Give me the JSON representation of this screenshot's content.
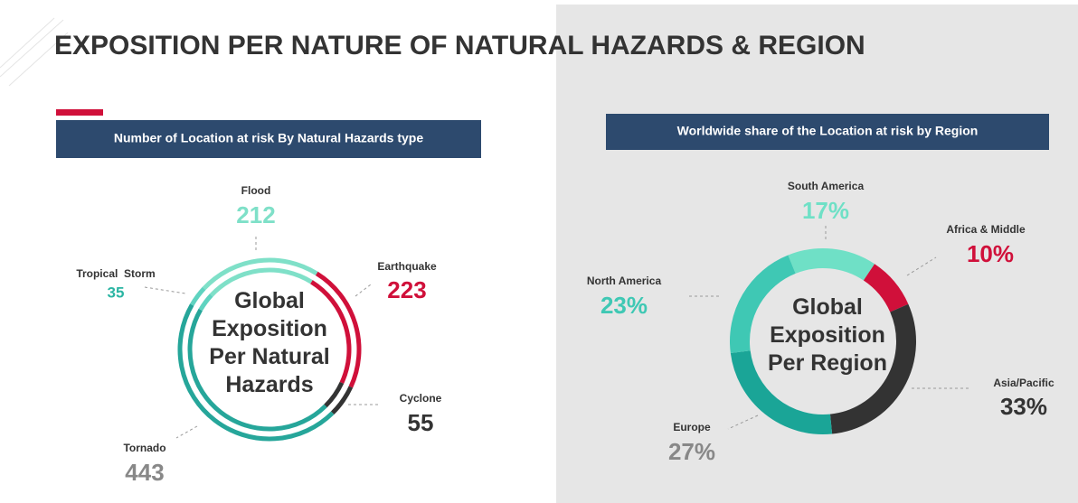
{
  "title": "EXPOSITION PER NATURE OF NATURAL HAZARDS & REGION",
  "chart_data": [
    {
      "type": "donut-double",
      "title": "Number of Location at risk By Natural Hazards type",
      "center_label": "Global Exposition Per Natural Hazards",
      "categories": [
        "Flood",
        "Earthquake",
        "Cyclone",
        "Tornado",
        "Tropical  Storm"
      ],
      "values": [
        212,
        223,
        55,
        443,
        35
      ],
      "colors": [
        "#7fe0c8",
        "#d0103a",
        "#333333",
        "#26a69a",
        "#5fd3c0"
      ]
    },
    {
      "type": "donut",
      "title": "Worldwide share of the Location at risk by Region",
      "center_label": "Global Exposition Per Region",
      "categories": [
        "South America",
        "Africa & Middle",
        "Asia/Pacific",
        "Europe",
        "North America"
      ],
      "values": [
        17,
        10,
        33,
        27,
        23
      ],
      "value_labels": [
        "17%",
        "10%",
        "33%",
        "27%",
        "23%"
      ],
      "colors": [
        "#6fe0c6",
        "#d0103a",
        "#333333",
        "#1aa597",
        "#3fc8b4"
      ]
    }
  ]
}
